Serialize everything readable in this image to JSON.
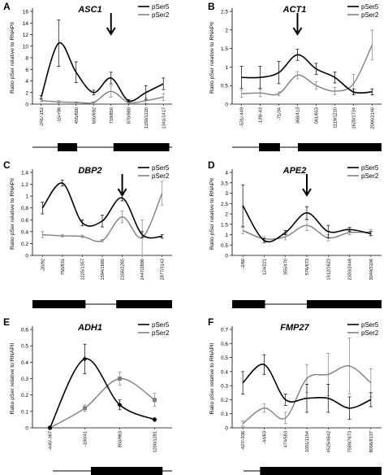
{
  "figure": {
    "legend_labels": [
      "pSer5",
      "pSer2"
    ],
    "colors": {
      "pSer5": "#000000",
      "pSer2": "#808080"
    }
  },
  "chart_data": [
    {
      "type": "line",
      "panel_letter": "A",
      "title": "ASC1",
      "ylabel": "Ratio pSer relative to RNAPII",
      "ylim": [
        0,
        16
      ],
      "yticks": [
        0,
        2,
        4,
        6,
        8,
        10,
        12,
        14,
        16
      ],
      "categories": [
        "-241/-152",
        "-15/+98",
        "455/600",
        "600/692",
        "718/850",
        "870/988",
        "1150/1220",
        "1341/1417"
      ],
      "series": [
        {
          "name": "pSer5",
          "values": [
            1.2,
            10.5,
            5.5,
            2.0,
            4.5,
            0.6,
            2.0,
            3.5
          ],
          "errors": [
            0.3,
            4.0,
            1.8,
            0.4,
            1.0,
            0.2,
            1.2,
            1.0
          ]
        },
        {
          "name": "pSer2",
          "values": [
            0.6,
            0.4,
            0.3,
            0.3,
            2.2,
            0.3,
            0.6,
            1.2
          ],
          "errors": [
            0.2,
            0.2,
            0.1,
            0.1,
            1.0,
            0.2,
            0.5,
            0.6
          ]
        }
      ],
      "arrow_at": "718/850",
      "gene_boxes": [
        [
          0.18,
          0.32
        ],
        [
          0.58,
          0.98
        ]
      ],
      "legend": "top-right"
    },
    {
      "type": "line",
      "panel_letter": "B",
      "title": "ACT1",
      "ylabel": "Ratio pSer relative to RNAPII",
      "ylim": [
        0,
        2.5
      ],
      "yticks": [
        0,
        0.5,
        1,
        1.5,
        2,
        2.5
      ],
      "categories": [
        "-531/-449",
        "-139/-43",
        "-71/34",
        "368/413",
        "561/653",
        "1119/1210",
        "1620/1734",
        "2066/2146"
      ],
      "series": [
        {
          "name": "pSer5",
          "values": [
            0.72,
            0.72,
            0.85,
            1.33,
            0.95,
            0.72,
            0.33,
            0.33
          ],
          "errors": [
            0.3,
            0.3,
            0.3,
            0.15,
            0.15,
            0.15,
            0.08,
            0.08
          ]
        },
        {
          "name": "pSer2",
          "values": [
            0.28,
            0.3,
            0.28,
            0.78,
            0.5,
            0.35,
            0.55,
            1.6
          ],
          "errors": [
            0.1,
            0.1,
            0.05,
            0.1,
            0.1,
            0.1,
            0.25,
            0.4
          ]
        }
      ],
      "arrow_at": "368/413",
      "gene_boxes": [
        [
          0.18,
          0.32
        ],
        [
          0.44,
          1.0
        ]
      ],
      "legend": "top-right"
    },
    {
      "type": "line",
      "panel_letter": "C",
      "title": "DBP2",
      "ylabel": "Ratio pSer relative to RNAPII",
      "ylim": [
        0,
        1.4
      ],
      "yticks": [
        0,
        0.2,
        0.4,
        0.6,
        0.8,
        1,
        1.2,
        1.4
      ],
      "categories": [
        "-20/92",
        "750/831",
        "1225/1357",
        "1594/1680",
        "2156/2265",
        "2447/2890",
        "2877/3143"
      ],
      "series": [
        {
          "name": "pSer5",
          "values": [
            0.8,
            1.22,
            0.55,
            0.58,
            0.97,
            0.35,
            0.32
          ],
          "errors": [
            0.1,
            0.05,
            0.05,
            0.1,
            0.05,
            0.05,
            0.03
          ]
        },
        {
          "name": "pSer2",
          "values": [
            0.35,
            0.33,
            0.32,
            0.25,
            0.65,
            0.3,
            1.05
          ],
          "errors": [
            0.05,
            0.02,
            0.02,
            0.02,
            0.1,
            0.3,
            0.2
          ]
        }
      ],
      "arrow_at": "2156/2265",
      "gene_boxes": [
        [
          0.0,
          0.38
        ],
        [
          0.6,
          1.0
        ]
      ],
      "legend": "top-right"
    },
    {
      "type": "line",
      "panel_letter": "D",
      "title": "APE2",
      "ylabel": "Ratio pSer relative to RNAPII",
      "ylim": [
        0,
        4
      ],
      "yticks": [
        0,
        0.5,
        1,
        1.5,
        2,
        2.5,
        3,
        3.5,
        4
      ],
      "categories": [
        "-2/60",
        "124/221",
        "355/470",
        "576/673",
        "1512/1623",
        "2333/2448",
        "3049/3106"
      ],
      "series": [
        {
          "name": "pSer5",
          "values": [
            2.4,
            0.72,
            1.1,
            2.05,
            1.15,
            1.25,
            1.05
          ],
          "errors": [
            1.0,
            0.1,
            0.1,
            0.3,
            0.3,
            0.1,
            0.1
          ]
        },
        {
          "name": "pSer2",
          "values": [
            1.2,
            0.8,
            0.9,
            1.45,
            0.85,
            1.1,
            1.1
          ],
          "errors": [
            0.15,
            0.1,
            0.15,
            0.25,
            0.15,
            0.1,
            0.15
          ]
        }
      ],
      "arrow_at": "576/673",
      "gene_boxes": [
        [
          0.0,
          0.22
        ],
        [
          0.5,
          1.0
        ]
      ],
      "legend": "top-right"
    },
    {
      "type": "line",
      "panel_letter": "E",
      "title": "ADH1",
      "ylabel": "Ratio pSer relative to RNAPII",
      "ylim": [
        0,
        0.6
      ],
      "yticks": [
        0,
        0.1,
        0.2,
        0.3,
        0.4,
        0.5,
        0.6
      ],
      "categories": [
        "-440/-367",
        "-100/41",
        "850/963",
        "1200/1281"
      ],
      "series": [
        {
          "name": "pSer5",
          "values": [
            0.0,
            0.42,
            0.14,
            0.05
          ],
          "errors": [
            0.0,
            0.09,
            0.03,
            0.01
          ]
        },
        {
          "name": "pSer2",
          "values": [
            0.0,
            0.12,
            0.3,
            0.17
          ],
          "errors": [
            0.0,
            0.02,
            0.04,
            0.04
          ]
        }
      ],
      "gene_boxes": [
        [
          0.32,
          0.92
        ]
      ],
      "legend": "top-right"
    },
    {
      "type": "line",
      "panel_letter": "F",
      "title": "FMP27",
      "ylabel": "Ratio pSer relative to RNAPII",
      "ylim": [
        0,
        0.7
      ],
      "yticks": [
        0,
        0.1,
        0.2,
        0.3,
        0.4,
        0.5,
        0.6,
        0.7
      ],
      "categories": [
        "-427/-336",
        "-44/63",
        "474/583",
        "1051/1154",
        "4525/4642",
        "7589/7673",
        "8056/8137"
      ],
      "series": [
        {
          "name": "pSer5",
          "values": [
            0.32,
            0.45,
            0.2,
            0.21,
            0.21,
            0.14,
            0.2
          ],
          "errors": [
            0.08,
            0.07,
            0.04,
            0.1,
            0.1,
            0.08,
            0.05
          ]
        },
        {
          "name": "pSer2",
          "values": [
            0.03,
            0.14,
            0.07,
            0.35,
            0.38,
            0.44,
            0.32
          ],
          "errors": [
            0.02,
            0.03,
            0.04,
            0.1,
            0.15,
            0.2,
            0.1
          ]
        }
      ],
      "gene_boxes": [
        [
          0.12,
          1.0
        ]
      ],
      "legend": "top-right"
    }
  ]
}
